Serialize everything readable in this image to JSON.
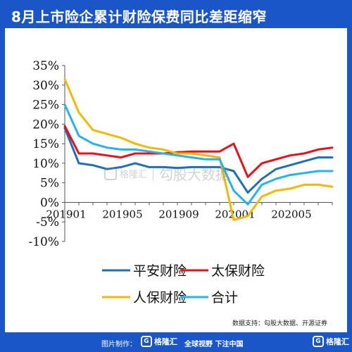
{
  "header": {
    "title": "8月上市险企累计财险保费同比差距缩窄"
  },
  "source": "数据支持：勾股大数据、开源证券",
  "footer": {
    "credit": "图片制作：",
    "logo_text": "格隆汇",
    "slogan": "全球视野 下注中国",
    "right_logo_text": "格隆汇"
  },
  "watermark": {
    "logo_text": "格隆汇",
    "text": "勾股大数据"
  },
  "colors": {
    "brand": "#1b56c8",
    "pingan": "#1f6fb5",
    "taibao": "#e8101a",
    "renbao": "#f5b800",
    "total": "#24b3ee"
  },
  "chart_data": {
    "type": "line",
    "title": "",
    "xlabel": "",
    "ylabel": "",
    "x": [
      "201901",
      "201902",
      "201903",
      "201904",
      "201905",
      "201906",
      "201907",
      "201908",
      "201909",
      "201910",
      "201911",
      "201912",
      "202001",
      "202002",
      "202003",
      "202004",
      "202005",
      "202006",
      "202007",
      "202008"
    ],
    "x_tick_labels": [
      {
        "index": 0,
        "label": "201901"
      },
      {
        "index": 4,
        "label": "201905"
      },
      {
        "index": 8,
        "label": "201909"
      },
      {
        "index": 12,
        "label": "202001"
      },
      {
        "index": 16,
        "label": "202005"
      }
    ],
    "y_ticks": [
      -10,
      -5,
      0,
      5,
      10,
      15,
      20,
      25,
      30,
      35
    ],
    "y_tick_labels": [
      "-10%",
      "-5%",
      "0%",
      "5%",
      "10%",
      "15%",
      "20%",
      "25%",
      "30%",
      "35%"
    ],
    "ylim": [
      -10,
      35
    ],
    "grid": false,
    "legend_position": "bottom",
    "series": [
      {
        "name": "平安财险",
        "color": "#1f6fb5",
        "values": [
          19.0,
          10.0,
          9.5,
          8.5,
          9.0,
          10.0,
          9.0,
          9.0,
          8.8,
          9.0,
          9.0,
          9.0,
          8.0,
          2.5,
          6.0,
          8.5,
          9.5,
          10.5,
          11.5,
          11.5
        ]
      },
      {
        "name": "太保财险",
        "color": "#e8101a",
        "values": [
          19.5,
          12.5,
          12.5,
          12.0,
          11.5,
          12.5,
          12.5,
          12.5,
          12.8,
          13.0,
          13.0,
          13.0,
          15.0,
          6.5,
          10.0,
          11.0,
          12.0,
          12.5,
          13.5,
          14.0
        ]
      },
      {
        "name": "人保财险",
        "color": "#f5b800",
        "values": [
          31.5,
          23.0,
          18.5,
          17.5,
          16.5,
          15.0,
          14.0,
          13.5,
          12.5,
          12.5,
          12.0,
          11.5,
          -4.5,
          -3.5,
          1.5,
          3.0,
          3.5,
          4.5,
          4.5,
          4.0
        ]
      },
      {
        "name": "合计",
        "color": "#24b3ee",
        "values": [
          25.0,
          17.0,
          15.0,
          14.0,
          13.5,
          13.5,
          13.0,
          12.5,
          12.0,
          11.5,
          11.0,
          11.0,
          3.0,
          -0.5,
          4.5,
          6.0,
          7.0,
          7.5,
          8.0,
          8.0
        ]
      }
    ]
  }
}
